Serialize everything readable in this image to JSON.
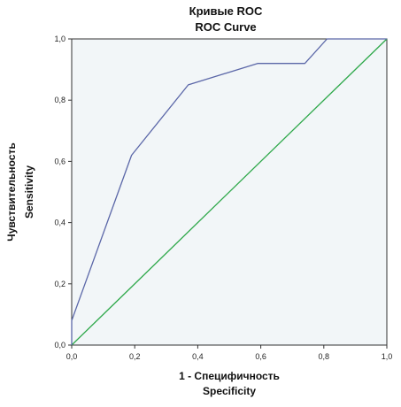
{
  "chart_data": {
    "type": "line",
    "title": "Кривые ROC",
    "subtitle": "ROC Curve",
    "xlabel": "1 - Специфичность",
    "xlabel_en": "Specificity",
    "ylabel": "Чувствительность",
    "ylabel_en": "Sensitivity",
    "xlim": [
      0,
      1
    ],
    "ylim": [
      0,
      1
    ],
    "x_ticks": [
      "0,0",
      "0,2",
      "0,4",
      "0,6",
      "0,8",
      "1,0"
    ],
    "y_ticks": [
      "0,0",
      "0,2",
      "0,4",
      "0,6",
      "0,8",
      "1,0"
    ],
    "grid": false,
    "legend": "none",
    "plot_background": "#f2f6f8",
    "series": [
      {
        "color": "#5b67a8",
        "x": [
          0.0,
          0.0,
          0.19,
          0.37,
          0.59,
          0.74,
          0.81,
          1.0
        ],
        "y": [
          0.0,
          0.08,
          0.62,
          0.85,
          0.92,
          0.92,
          1.0,
          1.0
        ]
      },
      {
        "color": "#2ea84a",
        "x": [
          0.0,
          1.0
        ],
        "y": [
          0.0,
          1.0
        ]
      }
    ]
  }
}
